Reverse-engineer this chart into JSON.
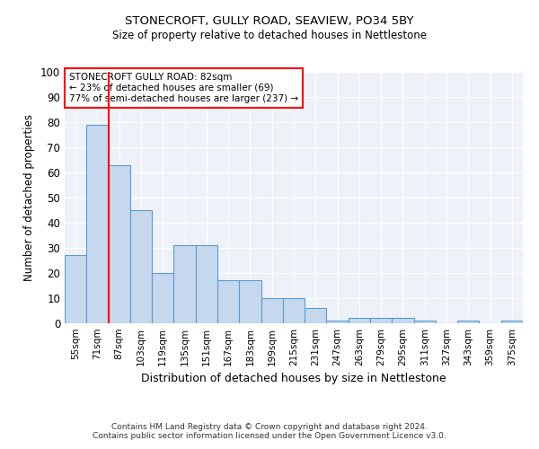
{
  "title1": "STONECROFT, GULLY ROAD, SEAVIEW, PO34 5BY",
  "title2": "Size of property relative to detached houses in Nettlestone",
  "xlabel": "Distribution of detached houses by size in Nettlestone",
  "ylabel": "Number of detached properties",
  "categories": [
    "55sqm",
    "71sqm",
    "87sqm",
    "103sqm",
    "119sqm",
    "135sqm",
    "151sqm",
    "167sqm",
    "183sqm",
    "199sqm",
    "215sqm",
    "231sqm",
    "247sqm",
    "263sqm",
    "279sqm",
    "295sqm",
    "311sqm",
    "327sqm",
    "343sqm",
    "359sqm",
    "375sqm"
  ],
  "values": [
    27,
    79,
    63,
    45,
    20,
    31,
    31,
    17,
    17,
    10,
    10,
    6,
    1,
    2,
    2,
    2,
    1,
    0,
    1,
    0,
    1
  ],
  "bar_color": "#c5d8ed",
  "bar_edge_color": "#5b9bd5",
  "red_line_x": 1.5,
  "annotation_line1": "STONECROFT GULLY ROAD: 82sqm",
  "annotation_line2": "← 23% of detached houses are smaller (69)",
  "annotation_line3": "77% of semi-detached houses are larger (237) →",
  "annotation_box_color": "white",
  "annotation_box_edge_color": "red",
  "footer1": "Contains HM Land Registry data © Crown copyright and database right 2024.",
  "footer2": "Contains public sector information licensed under the Open Government Licence v3.0.",
  "ylim": [
    0,
    100
  ],
  "background_color": "#eef2f8"
}
